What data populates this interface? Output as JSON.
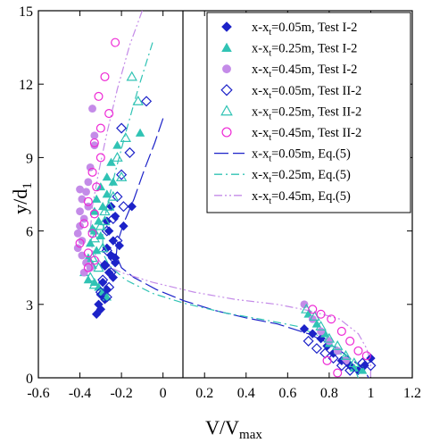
{
  "chart_data": {
    "type": "scatter",
    "xlabel_main": "V/V",
    "xlabel_sub": "max",
    "ylabel_main": "y/d",
    "ylabel_sub": "1",
    "xlim": [
      -0.6,
      1.2
    ],
    "ylim": [
      0,
      15
    ],
    "x_ticks": [
      -0.6,
      -0.4,
      -0.2,
      0,
      0.2,
      0.4,
      0.6,
      0.8,
      1,
      1.2
    ],
    "x_tick_labels": [
      "-0.6",
      "-0.4",
      "-0.2",
      "0",
      "0.2",
      "0.4",
      "0.6",
      "0.8",
      "1",
      "1.2"
    ],
    "y_ticks": [
      0,
      3,
      6,
      9,
      12,
      15
    ],
    "y_tick_labels": [
      "0",
      "3",
      "6",
      "9",
      "12",
      "15"
    ],
    "grid": false,
    "legend_position": "top-right",
    "colors": {
      "blue": "#1c22c8",
      "teal": "#30c3b4",
      "violet": "#c48be8",
      "magenta": "#ee28d5"
    },
    "series": [
      {
        "name_main": "x-x",
        "name_sub": "t",
        "name_rest": "=0.05m, Test I-2",
        "marker": "diamond-filled",
        "color": "#1c22c8",
        "points": [
          [
            -0.25,
            7.0
          ],
          [
            -0.27,
            6.4
          ],
          [
            -0.23,
            6.6
          ],
          [
            -0.26,
            6.0
          ],
          [
            -0.24,
            5.6
          ],
          [
            -0.27,
            5.3
          ],
          [
            -0.25,
            5.0
          ],
          [
            -0.23,
            4.7
          ],
          [
            -0.28,
            4.6
          ],
          [
            -0.26,
            4.3
          ],
          [
            -0.24,
            4.1
          ],
          [
            -0.29,
            3.9
          ],
          [
            -0.27,
            3.6
          ],
          [
            -0.3,
            3.4
          ],
          [
            -0.28,
            3.2
          ],
          [
            -0.31,
            3.0
          ],
          [
            -0.3,
            2.8
          ],
          [
            -0.32,
            2.6
          ],
          [
            -0.15,
            7.0
          ],
          [
            -0.19,
            6.2
          ],
          [
            -0.21,
            5.4
          ],
          [
            -0.23,
            4.9
          ],
          [
            0.68,
            2.0
          ],
          [
            0.72,
            1.8
          ],
          [
            0.76,
            1.6
          ],
          [
            0.79,
            1.3
          ],
          [
            0.82,
            1.0
          ],
          [
            0.86,
            0.7
          ],
          [
            0.9,
            0.5
          ],
          [
            0.94,
            0.3
          ],
          [
            0.97,
            0.5
          ],
          [
            1.0,
            0.8
          ]
        ]
      },
      {
        "name_main": "x-x",
        "name_sub": "t",
        "name_rest": "=0.25m, Test I-2",
        "marker": "triangle-filled",
        "color": "#30c3b4",
        "points": [
          [
            -0.27,
            8.2
          ],
          [
            -0.25,
            8.8
          ],
          [
            -0.3,
            7.8
          ],
          [
            -0.27,
            7.5
          ],
          [
            -0.32,
            7.3
          ],
          [
            -0.29,
            7.0
          ],
          [
            -0.33,
            6.8
          ],
          [
            -0.31,
            6.4
          ],
          [
            -0.34,
            6.1
          ],
          [
            -0.3,
            5.8
          ],
          [
            -0.35,
            5.5
          ],
          [
            -0.32,
            5.2
          ],
          [
            -0.36,
            4.9
          ],
          [
            -0.34,
            4.6
          ],
          [
            -0.38,
            4.3
          ],
          [
            -0.36,
            4.0
          ],
          [
            -0.33,
            3.9
          ],
          [
            -0.31,
            3.7
          ],
          [
            -0.29,
            3.5
          ],
          [
            -0.27,
            3.3
          ],
          [
            -0.22,
            9.5
          ],
          [
            -0.11,
            10.0
          ],
          [
            -0.24,
            8.0
          ],
          [
            -0.33,
            6.0
          ],
          [
            0.7,
            2.6
          ],
          [
            0.74,
            2.2
          ],
          [
            0.78,
            1.8
          ],
          [
            0.8,
            1.4
          ],
          [
            0.84,
            1.1
          ],
          [
            0.88,
            0.8
          ],
          [
            0.92,
            0.4
          ],
          [
            0.96,
            0.3
          ]
        ]
      },
      {
        "name_main": "x-x",
        "name_sub": "t",
        "name_rest": "=0.45m, Test I-2",
        "marker": "circle-filled",
        "color": "#c48be8",
        "points": [
          [
            -0.34,
            11.0
          ],
          [
            -0.33,
            9.5
          ],
          [
            -0.35,
            8.6
          ],
          [
            -0.36,
            8.0
          ],
          [
            -0.37,
            7.6
          ],
          [
            -0.39,
            7.3
          ],
          [
            -0.36,
            7.0
          ],
          [
            -0.4,
            6.8
          ],
          [
            -0.38,
            6.5
          ],
          [
            -0.4,
            6.2
          ],
          [
            -0.41,
            5.9
          ],
          [
            -0.39,
            5.6
          ],
          [
            -0.41,
            5.3
          ],
          [
            -0.39,
            5.0
          ],
          [
            -0.37,
            4.7
          ],
          [
            -0.35,
            4.5
          ],
          [
            -0.38,
            4.3
          ],
          [
            -0.33,
            9.9
          ],
          [
            -0.4,
            7.7
          ],
          [
            0.68,
            3.0
          ],
          [
            0.72,
            2.4
          ],
          [
            0.76,
            1.9
          ],
          [
            0.8,
            1.5
          ],
          [
            0.84,
            1.1
          ],
          [
            0.88,
            0.7
          ]
        ]
      },
      {
        "name_main": "x-x",
        "name_sub": "t",
        "name_rest": "=0.05m, Test II-2",
        "marker": "diamond-open",
        "color": "#1c22c8",
        "points": [
          [
            -0.08,
            11.3
          ],
          [
            -0.2,
            10.2
          ],
          [
            -0.16,
            9.2
          ],
          [
            -0.2,
            8.3
          ],
          [
            -0.22,
            7.4
          ],
          [
            -0.24,
            6.5
          ],
          [
            -0.27,
            6.0
          ],
          [
            -0.22,
            5.6
          ],
          [
            -0.27,
            5.2
          ],
          [
            -0.24,
            4.9
          ],
          [
            -0.28,
            4.6
          ],
          [
            -0.25,
            4.3
          ],
          [
            -0.29,
            4.0
          ],
          [
            -0.26,
            3.7
          ],
          [
            -0.3,
            3.5
          ],
          [
            -0.27,
            3.3
          ],
          [
            -0.19,
            7.0
          ],
          [
            0.7,
            1.5
          ],
          [
            0.74,
            1.2
          ],
          [
            0.78,
            1.0
          ],
          [
            0.82,
            0.8
          ],
          [
            0.86,
            0.5
          ],
          [
            0.9,
            0.3
          ],
          [
            0.96,
            0.6
          ],
          [
            1.0,
            0.5
          ]
        ]
      },
      {
        "name_main": "x-x",
        "name_sub": "t",
        "name_rest": "=0.25m, Test II-2",
        "marker": "triangle-open",
        "color": "#30c3b4",
        "points": [
          [
            -0.15,
            12.3
          ],
          [
            -0.12,
            11.3
          ],
          [
            -0.18,
            9.8
          ],
          [
            -0.22,
            9.0
          ],
          [
            -0.2,
            8.2
          ],
          [
            -0.24,
            7.4
          ],
          [
            -0.28,
            6.8
          ],
          [
            -0.3,
            6.2
          ],
          [
            -0.33,
            5.7
          ],
          [
            -0.29,
            5.3
          ],
          [
            -0.34,
            4.9
          ],
          [
            -0.31,
            4.5
          ],
          [
            -0.35,
            4.1
          ],
          [
            -0.33,
            3.8
          ],
          [
            -0.26,
            7.0
          ],
          [
            -0.28,
            6.4
          ],
          [
            0.69,
            2.8
          ],
          [
            0.73,
            2.5
          ],
          [
            0.76,
            2.1
          ],
          [
            0.8,
            1.6
          ],
          [
            0.84,
            1.3
          ],
          [
            0.88,
            0.9
          ],
          [
            0.92,
            0.6
          ]
        ]
      },
      {
        "name_main": "x-x",
        "name_sub": "t",
        "name_rest": "=0.45m, Test II-2",
        "marker": "circle-open",
        "color": "#ee28d5",
        "points": [
          [
            -0.23,
            13.7
          ],
          [
            -0.28,
            12.3
          ],
          [
            -0.31,
            11.5
          ],
          [
            -0.26,
            10.8
          ],
          [
            -0.3,
            10.2
          ],
          [
            -0.33,
            9.6
          ],
          [
            -0.3,
            9.0
          ],
          [
            -0.34,
            8.4
          ],
          [
            -0.32,
            7.8
          ],
          [
            -0.36,
            7.2
          ],
          [
            -0.33,
            6.7
          ],
          [
            -0.38,
            6.3
          ],
          [
            -0.34,
            5.9
          ],
          [
            -0.4,
            5.5
          ],
          [
            -0.36,
            5.1
          ],
          [
            -0.33,
            4.8
          ],
          [
            -0.36,
            4.5
          ],
          [
            0.72,
            2.8
          ],
          [
            0.76,
            2.6
          ],
          [
            0.81,
            2.4
          ],
          [
            0.86,
            1.9
          ],
          [
            0.9,
            1.5
          ],
          [
            0.94,
            1.1
          ],
          [
            0.98,
            0.9
          ],
          [
            0.84,
            0.2
          ],
          [
            0.79,
            0.7
          ]
        ]
      },
      {
        "name_main": "x-x",
        "name_sub": "t",
        "name_rest": "=0.05m, Eq.(5)",
        "line": "long-dash",
        "color": "#1c22c8",
        "points": [
          [
            0.0,
            10.6
          ],
          [
            -0.04,
            9.6
          ],
          [
            -0.09,
            8.5
          ],
          [
            -0.14,
            7.3
          ],
          [
            -0.19,
            6.3
          ],
          [
            -0.22,
            5.5
          ],
          [
            -0.225,
            5.0
          ],
          [
            -0.2,
            4.5
          ],
          [
            -0.14,
            4.1
          ],
          [
            -0.03,
            3.6
          ],
          [
            0.1,
            3.15
          ],
          [
            0.25,
            2.75
          ],
          [
            0.4,
            2.45
          ],
          [
            0.55,
            2.2
          ],
          [
            0.7,
            1.8
          ],
          [
            0.8,
            1.4
          ],
          [
            0.87,
            1.0
          ],
          [
            0.93,
            0.6
          ],
          [
            0.97,
            0.3
          ],
          [
            0.99,
            0.0
          ]
        ]
      },
      {
        "name_main": "x-x",
        "name_sub": "t",
        "name_rest": "=0.25m, Eq.(5)",
        "line": "dash-dot",
        "color": "#30c3b4",
        "points": [
          [
            -0.05,
            13.7
          ],
          [
            -0.12,
            11.8
          ],
          [
            -0.18,
            10.0
          ],
          [
            -0.23,
            8.4
          ],
          [
            -0.27,
            7.0
          ],
          [
            -0.29,
            6.0
          ],
          [
            -0.29,
            5.1
          ],
          [
            -0.26,
            4.6
          ],
          [
            -0.18,
            4.0
          ],
          [
            -0.05,
            3.45
          ],
          [
            0.1,
            3.05
          ],
          [
            0.3,
            2.65
          ],
          [
            0.5,
            2.35
          ],
          [
            0.65,
            2.1
          ],
          [
            0.78,
            1.6
          ],
          [
            0.86,
            1.1
          ],
          [
            0.91,
            0.6
          ],
          [
            0.94,
            0.0
          ]
        ]
      },
      {
        "name_main": "x-x",
        "name_sub": "t",
        "name_rest": "=0.45m, Eq.(5)",
        "line": "dash-dot-dot",
        "color": "#c48be8",
        "points": [
          [
            -0.1,
            15.0
          ],
          [
            -0.16,
            13.6
          ],
          [
            -0.22,
            11.8
          ],
          [
            -0.27,
            10.0
          ],
          [
            -0.31,
            8.4
          ],
          [
            -0.34,
            7.0
          ],
          [
            -0.35,
            6.0
          ],
          [
            -0.34,
            5.2
          ],
          [
            -0.3,
            4.7
          ],
          [
            -0.2,
            4.3
          ],
          [
            -0.05,
            3.9
          ],
          [
            0.15,
            3.5
          ],
          [
            0.35,
            3.2
          ],
          [
            0.55,
            3.0
          ],
          [
            0.7,
            2.75
          ],
          [
            0.85,
            2.4
          ],
          [
            0.94,
            1.8
          ],
          [
            0.98,
            1.2
          ],
          [
            1.0,
            0.6
          ],
          [
            1.0,
            0.0
          ]
        ]
      }
    ]
  }
}
